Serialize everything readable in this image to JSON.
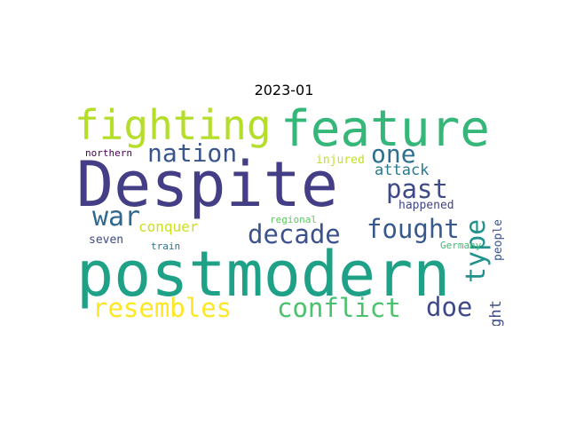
{
  "title": "2023-01",
  "words": [
    {
      "text": "Despite",
      "color": "#433e85"
    },
    {
      "text": "postmodern",
      "color": "#1fa187"
    },
    {
      "text": "feature",
      "color": "#35b779"
    },
    {
      "text": "fighting",
      "color": "#b5de2b"
    },
    {
      "text": "nation",
      "color": "#39558c"
    },
    {
      "text": "one",
      "color": "#2e6f8e"
    },
    {
      "text": "past",
      "color": "#3e4a89"
    },
    {
      "text": "type",
      "color": "#21918c"
    },
    {
      "text": "war",
      "color": "#31688e"
    },
    {
      "text": "decade",
      "color": "#3b528b"
    },
    {
      "text": "fought",
      "color": "#38598c"
    },
    {
      "text": "conquer",
      "color": "#cde11d"
    },
    {
      "text": "resembles",
      "color": "#fde725"
    },
    {
      "text": "conflict",
      "color": "#4ac16d"
    },
    {
      "text": "doe",
      "color": "#3e4989"
    },
    {
      "text": "outright",
      "color": "#3e4c8a"
    },
    {
      "text": "people",
      "color": "#3b528b"
    },
    {
      "text": "northern",
      "color": "#440154"
    },
    {
      "text": "injured",
      "color": "#c2df23"
    },
    {
      "text": "attack",
      "color": "#2a788e"
    },
    {
      "text": "happened",
      "color": "#414487"
    },
    {
      "text": "regional",
      "color": "#5ec962"
    },
    {
      "text": "seven",
      "color": "#3e4a89"
    },
    {
      "text": "train",
      "color": "#2c718e"
    },
    {
      "text": "Germany",
      "color": "#3bbb75"
    }
  ]
}
